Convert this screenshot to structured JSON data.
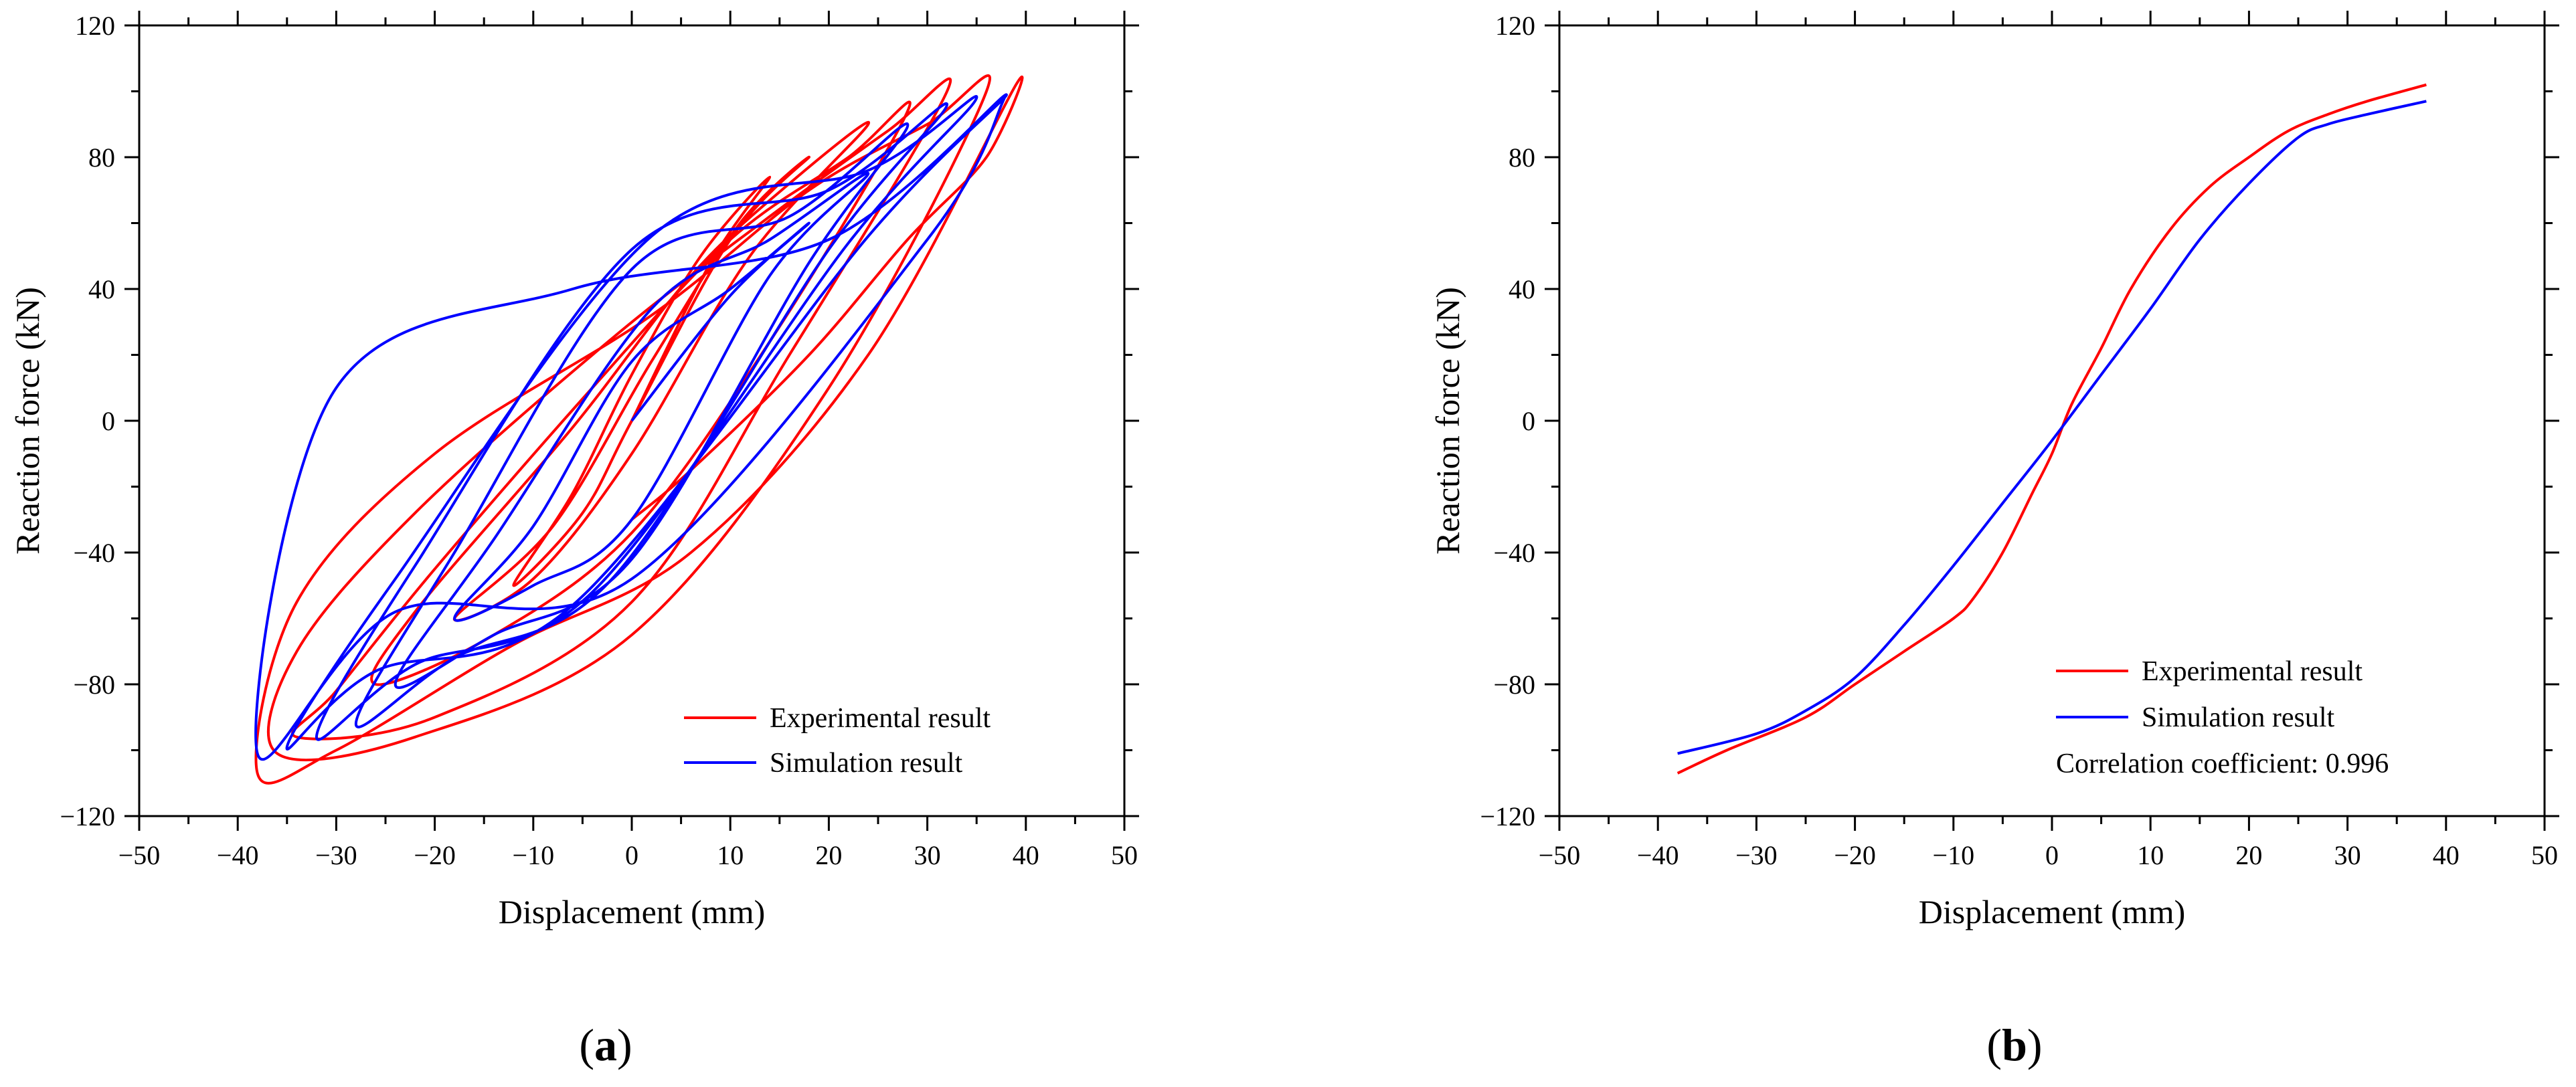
{
  "chart_data": [
    {
      "type": "line",
      "panel_label": "a",
      "xlabel": "Displacement (mm)",
      "ylabel": "Reaction force (kN)",
      "xlim": [
        -50,
        50
      ],
      "ylim": [
        -120,
        120
      ],
      "xticks": [
        -50,
        -40,
        -30,
        -20,
        -10,
        0,
        10,
        20,
        30,
        40,
        50
      ],
      "yticks": [
        -120,
        -80,
        -40,
        0,
        40,
        80,
        120
      ],
      "grid": false,
      "legend_placement": "bottom-right",
      "series": [
        {
          "name": "Experimental result",
          "color": "#ff0000",
          "x": [
            0,
            8,
            14,
            7,
            0,
            -6,
            -12,
            -5,
            0,
            10,
            18,
            11,
            2,
            -8,
            -18,
            -10,
            0,
            12,
            24,
            16,
            6,
            -6,
            -22,
            -26,
            -14,
            0,
            14,
            28,
            22,
            10,
            -4,
            -20,
            -30,
            -34,
            -20,
            0,
            16,
            32,
            26,
            14,
            -2,
            -22,
            -34,
            -36,
            -22,
            0,
            20,
            36,
            30,
            18,
            2,
            -20,
            -34,
            -38,
            -30,
            -12,
            6,
            24,
            39,
            36,
            28,
            18,
            6,
            0
          ],
          "y": [
            0,
            48,
            74,
            50,
            14,
            -22,
            -50,
            -28,
            0,
            55,
            80,
            60,
            18,
            -32,
            -60,
            -48,
            -10,
            50,
            90,
            72,
            44,
            -2,
            -58,
            -80,
            -65,
            -34,
            24,
            94,
            80,
            55,
            10,
            -45,
            -82,
            -96,
            -90,
            -55,
            20,
            100,
            88,
            62,
            25,
            -28,
            -70,
            -101,
            -96,
            -65,
            10,
            100,
            90,
            70,
            32,
            -10,
            -55,
            -107,
            -100,
            -68,
            -40,
            20,
            102,
            80,
            55,
            20,
            -15,
            -30
          ]
        },
        {
          "name": "Simulation result",
          "color": "#0000ff",
          "x": [
            0,
            10,
            18,
            10,
            0,
            -10,
            -18,
            -10,
            0,
            14,
            24,
            14,
            2,
            -14,
            -24,
            -14,
            0,
            18,
            28,
            16,
            0,
            -18,
            -28,
            -18,
            -2,
            20,
            32,
            20,
            0,
            -22,
            -32,
            -22,
            -4,
            22,
            35,
            24,
            2,
            -24,
            -35,
            -26,
            -6,
            24,
            38,
            20,
            -6,
            -30,
            -38,
            -24,
            0,
            30,
            38
          ],
          "y": [
            0,
            38,
            60,
            40,
            18,
            -32,
            -60,
            -50,
            -30,
            44,
            75,
            55,
            34,
            -36,
            -80,
            -65,
            -42,
            48,
            90,
            62,
            46,
            -40,
            -92,
            -72,
            -48,
            52,
            96,
            70,
            52,
            -44,
            -96,
            -74,
            -52,
            54,
            98,
            76,
            56,
            -48,
            -99,
            -76,
            -56,
            56,
            99,
            55,
            40,
            10,
            -101,
            -58,
            -48,
            55,
            99
          ]
        }
      ]
    },
    {
      "type": "line",
      "panel_label": "b",
      "xlabel": "Displacement (mm)",
      "ylabel": "Reaction force (kN)",
      "xlim": [
        -50,
        50
      ],
      "ylim": [
        -120,
        120
      ],
      "xticks": [
        -50,
        -40,
        -30,
        -20,
        -10,
        0,
        10,
        20,
        30,
        40,
        50
      ],
      "yticks": [
        -120,
        -80,
        -40,
        0,
        40,
        80,
        120
      ],
      "grid": false,
      "legend_placement": "bottom-right",
      "annotation": "Correlation coefficient: 0.996",
      "series": [
        {
          "name": "Experimental result",
          "color": "#ff0000",
          "x": [
            -38,
            -33,
            -25,
            -20,
            -15,
            -10,
            -8,
            -5,
            -2,
            0,
            2,
            5,
            8,
            12,
            16,
            20,
            24,
            28,
            32,
            38
          ],
          "y": [
            -107,
            -100,
            -90,
            -80,
            -70,
            -60,
            -54,
            -40,
            -22,
            -10,
            5,
            22,
            40,
            58,
            71,
            80,
            88,
            93,
            97,
            102
          ]
        },
        {
          "name": "Simulation result",
          "color": "#0000ff",
          "x": [
            -38,
            -30,
            -25,
            -20,
            -15,
            -10,
            -5,
            0,
            5,
            10,
            15,
            20,
            25,
            28,
            32,
            38
          ],
          "y": [
            -101,
            -95,
            -88,
            -78,
            -62,
            -44,
            -25,
            -6,
            14,
            34,
            55,
            72,
            86,
            90,
            93,
            97
          ]
        }
      ]
    }
  ]
}
